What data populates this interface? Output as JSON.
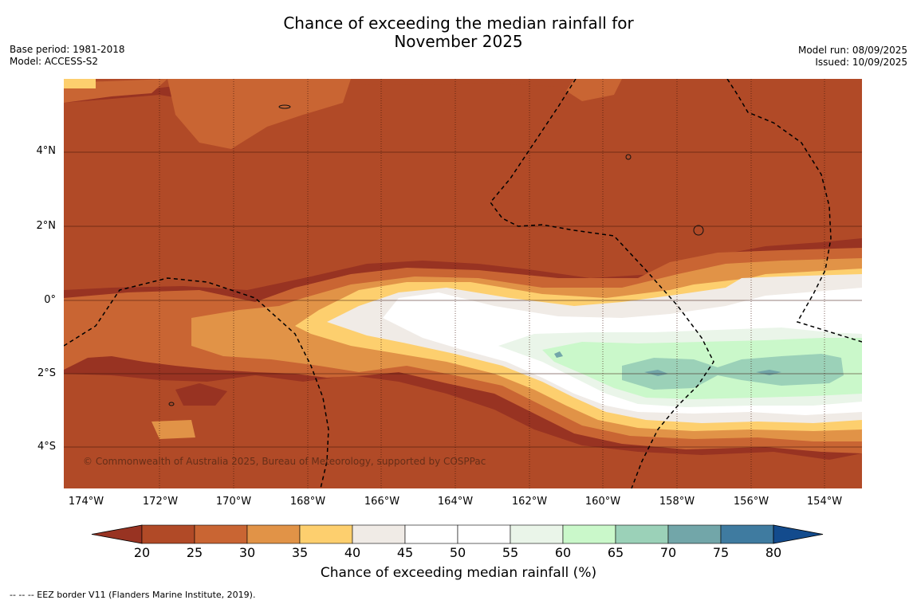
{
  "title_line1": "Chance of exceeding the median rainfall for",
  "title_line2": "November 2025",
  "meta_left": {
    "base_period": "Base period: 1981-2018",
    "model": "Model: ACCESS-S2"
  },
  "meta_right": {
    "model_run": "Model run: 08/09/2025",
    "issued": "Issued: 10/09/2025"
  },
  "lat_labels": [
    "4°N",
    "2°N",
    "0°",
    "2°S",
    "4°S"
  ],
  "lon_labels": [
    "174°W",
    "172°W",
    "170°W",
    "168°W",
    "166°W",
    "164°W",
    "162°W",
    "160°W",
    "158°W",
    "156°W",
    "154°W"
  ],
  "copyright": "© Commonwealth of Australia 2025, Bureau of Meteorology, supported by COSPPac",
  "colorbar": {
    "ticks": [
      "20",
      "25",
      "30",
      "35",
      "40",
      "45",
      "50",
      "55",
      "60",
      "65",
      "70",
      "75",
      "80"
    ],
    "colors": [
      "#983322",
      "#b14a27",
      "#c96533",
      "#e19347",
      "#fdcf6e",
      "#f0ebe6",
      "#ffffff",
      "#ffffff",
      "#eaf5e9",
      "#caf8ca",
      "#9bd1b8",
      "#72a6a9",
      "#3f7ba0",
      "#134b8d"
    ],
    "label": "Chance of exceeding median rainfall (%)"
  },
  "footnote": "--  --  -- EEZ border V11 (Flanders Marine Institute, 2019).",
  "chart_data": {
    "type": "heatmap",
    "title": "Chance of exceeding the median rainfall for November 2025",
    "lon_range": [
      -174.6,
      -153
    ],
    "lat_range": [
      -5.1,
      5.9
    ],
    "color_scale_min": 20,
    "color_scale_max": 80,
    "color_scale_step": 5,
    "colorbar_label": "Chance of exceeding median rainfall (%)"
  }
}
